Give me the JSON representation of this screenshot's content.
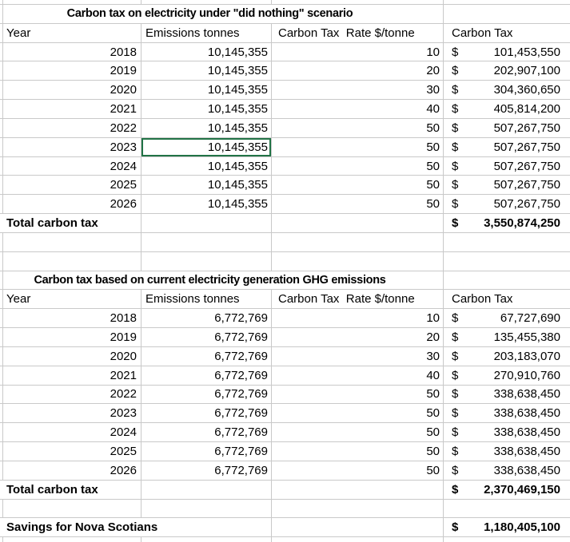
{
  "sheet": {
    "currency_symbol": "$",
    "grid_color": "#c9c9c9",
    "selection_color": "#217346",
    "selected_cell": {
      "table_index": 0,
      "row_index": 5,
      "column": "emissions"
    }
  },
  "tables": [
    {
      "title": "Carbon tax on electricity under \"did nothing\" scenario",
      "headers": [
        "Year",
        "Emissions tonnes",
        "Carbon Tax  Rate $/tonne",
        "Carbon Tax"
      ],
      "rows": [
        {
          "year": "2018",
          "emissions": "10,145,355",
          "rate": "10",
          "tax": "101,453,550"
        },
        {
          "year": "2019",
          "emissions": "10,145,355",
          "rate": "20",
          "tax": "202,907,100"
        },
        {
          "year": "2020",
          "emissions": "10,145,355",
          "rate": "30",
          "tax": "304,360,650"
        },
        {
          "year": "2021",
          "emissions": "10,145,355",
          "rate": "40",
          "tax": "405,814,200"
        },
        {
          "year": "2022",
          "emissions": "10,145,355",
          "rate": "50",
          "tax": "507,267,750"
        },
        {
          "year": "2023",
          "emissions": "10,145,355",
          "rate": "50",
          "tax": "507,267,750"
        },
        {
          "year": "2024",
          "emissions": "10,145,355",
          "rate": "50",
          "tax": "507,267,750"
        },
        {
          "year": "2025",
          "emissions": "10,145,355",
          "rate": "50",
          "tax": "507,267,750"
        },
        {
          "year": "2026",
          "emissions": "10,145,355",
          "rate": "50",
          "tax": "507,267,750"
        }
      ],
      "total": {
        "label": "Total carbon tax",
        "value": "3,550,874,250"
      }
    },
    {
      "title": "Carbon tax based on current electricity generation GHG emissions",
      "headers": [
        "Year",
        "Emissions tonnes",
        "Carbon Tax  Rate $/tonne",
        "Carbon Tax"
      ],
      "rows": [
        {
          "year": "2018",
          "emissions": "6,772,769",
          "rate": "10",
          "tax": "67,727,690"
        },
        {
          "year": "2019",
          "emissions": "6,772,769",
          "rate": "20",
          "tax": "135,455,380"
        },
        {
          "year": "2020",
          "emissions": "6,772,769",
          "rate": "30",
          "tax": "203,183,070"
        },
        {
          "year": "2021",
          "emissions": "6,772,769",
          "rate": "40",
          "tax": "270,910,760"
        },
        {
          "year": "2022",
          "emissions": "6,772,769",
          "rate": "50",
          "tax": "338,638,450"
        },
        {
          "year": "2023",
          "emissions": "6,772,769",
          "rate": "50",
          "tax": "338,638,450"
        },
        {
          "year": "2024",
          "emissions": "6,772,769",
          "rate": "50",
          "tax": "338,638,450"
        },
        {
          "year": "2025",
          "emissions": "6,772,769",
          "rate": "50",
          "tax": "338,638,450"
        },
        {
          "year": "2026",
          "emissions": "6,772,769",
          "rate": "50",
          "tax": "338,638,450"
        }
      ],
      "total": {
        "label": "Total carbon tax",
        "value": "2,370,469,150"
      }
    }
  ],
  "savings": {
    "label": "Savings for Nova Scotians",
    "value": "1,180,405,100"
  }
}
